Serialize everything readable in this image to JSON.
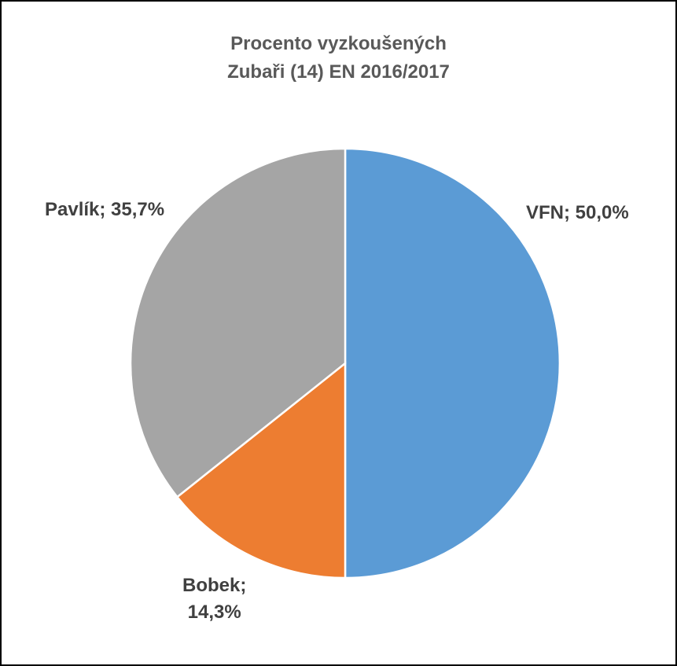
{
  "chart_data": {
    "type": "pie",
    "title": [
      "Procento vyzkoušených",
      "Zubaři (14) EN 2016/2017"
    ],
    "slices": [
      {
        "name": "VFN",
        "value": 50.0,
        "label": "VFN; 50,0%",
        "color": "#5B9BD5"
      },
      {
        "name": "Bobek",
        "value": 14.3,
        "label_lines": [
          "Bobek;",
          "14,3%"
        ],
        "color": "#ED7D31"
      },
      {
        "name": "Pavlík",
        "value": 35.7,
        "label": "Pavlík; 35,7%",
        "color": "#A5A5A5"
      }
    ],
    "start_angle_deg": 0,
    "direction": "clockwise",
    "legend": "none"
  }
}
